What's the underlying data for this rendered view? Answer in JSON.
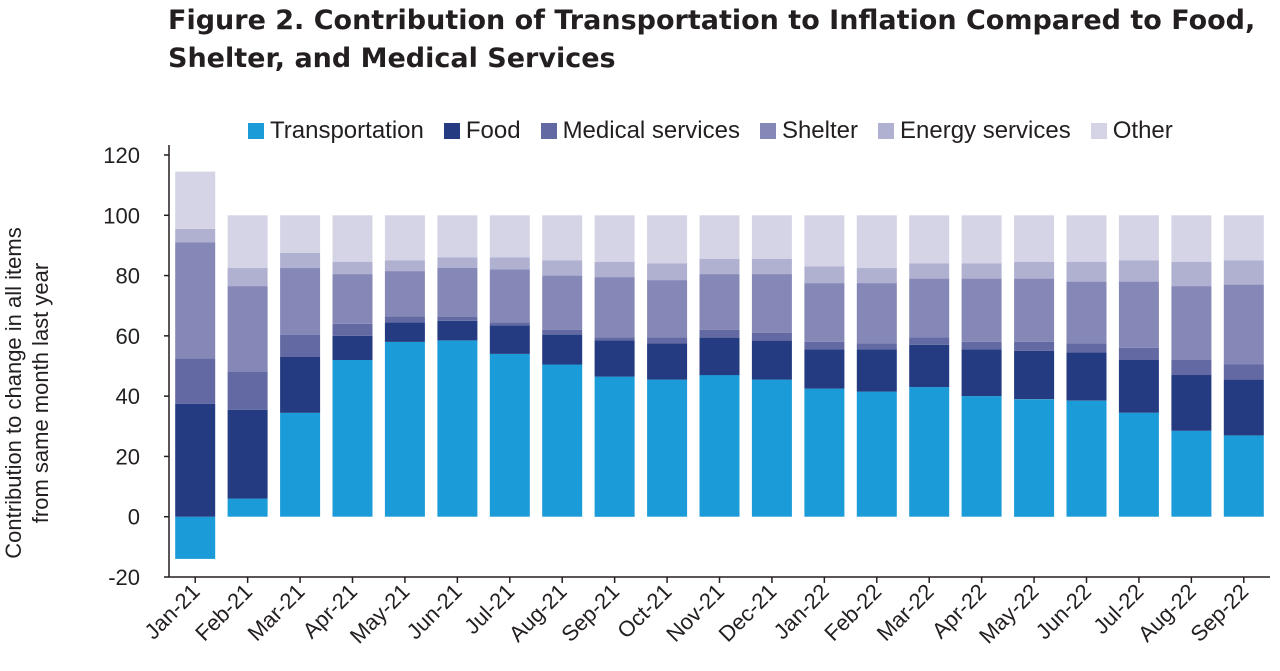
{
  "title": "Figure 2. Contribution of Transportation to Inflation Compared to Food, Shelter, and Medical Services",
  "chart_data": {
    "type": "bar",
    "stacked": true,
    "ylabel_lines": [
      "Contribution to change in all items",
      "from same month last year"
    ],
    "ylim": [
      -20,
      120
    ],
    "yticks": [
      120,
      100,
      80,
      60,
      40,
      20,
      0,
      -20
    ],
    "grid": false,
    "legend_position": "top",
    "categories": [
      "Jan-21",
      "Feb-21",
      "Mar-21",
      "Apr-21",
      "May-21",
      "Jun-21",
      "Jul-21",
      "Aug-21",
      "Sep-21",
      "Oct-21",
      "Nov-21",
      "Dec-21",
      "Jan-22",
      "Feb-22",
      "Mar-22",
      "Apr-22",
      "May-22",
      "Jun-22",
      "Jul-22",
      "Aug-22",
      "Sep-22"
    ],
    "series": [
      {
        "name": "Transportation",
        "color": "#1b9bd7",
        "values": [
          -14,
          6,
          34.5,
          52,
          58,
          58.5,
          54,
          50.5,
          46.5,
          45.5,
          47,
          45.5,
          42.5,
          41.5,
          43,
          40,
          39,
          38.5,
          34.5,
          28.5,
          27
        ]
      },
      {
        "name": "Food",
        "color": "#243a81",
        "values": [
          37.5,
          29.5,
          18.5,
          8,
          6.5,
          6.5,
          9.5,
          10,
          12,
          12,
          12.5,
          13,
          13,
          14,
          14,
          15.5,
          16,
          16,
          17.5,
          18.5,
          18.5
        ]
      },
      {
        "name": "Medical services",
        "color": "#6269a3",
        "values": [
          15,
          12.5,
          7.5,
          4,
          2,
          1.5,
          1,
          1.5,
          1,
          2,
          2.5,
          2.5,
          2.5,
          2,
          2.5,
          2.5,
          3,
          3,
          4,
          5,
          5
        ]
      },
      {
        "name": "Shelter",
        "color": "#8587b6",
        "values": [
          38.5,
          28.5,
          22,
          16.5,
          15,
          16,
          17.5,
          18,
          20,
          19,
          18.5,
          19.5,
          19.5,
          20,
          19.5,
          21,
          21,
          20.5,
          22,
          24.5,
          26.5
        ]
      },
      {
        "name": "Energy services",
        "color": "#b0b0d1",
        "values": [
          4.5,
          6,
          5,
          4,
          3.5,
          3.5,
          4,
          5,
          5,
          5.5,
          5,
          5,
          5.5,
          5,
          5,
          5,
          5.5,
          6.5,
          7,
          8,
          8
        ]
      },
      {
        "name": "Other",
        "color": "#d5d4e6",
        "values": [
          19,
          17.5,
          12.5,
          15.5,
          15,
          14,
          14,
          15,
          15.5,
          16,
          14.5,
          14.5,
          17,
          17.5,
          16,
          16,
          15.5,
          15.5,
          15,
          15.5,
          15
        ]
      }
    ]
  }
}
